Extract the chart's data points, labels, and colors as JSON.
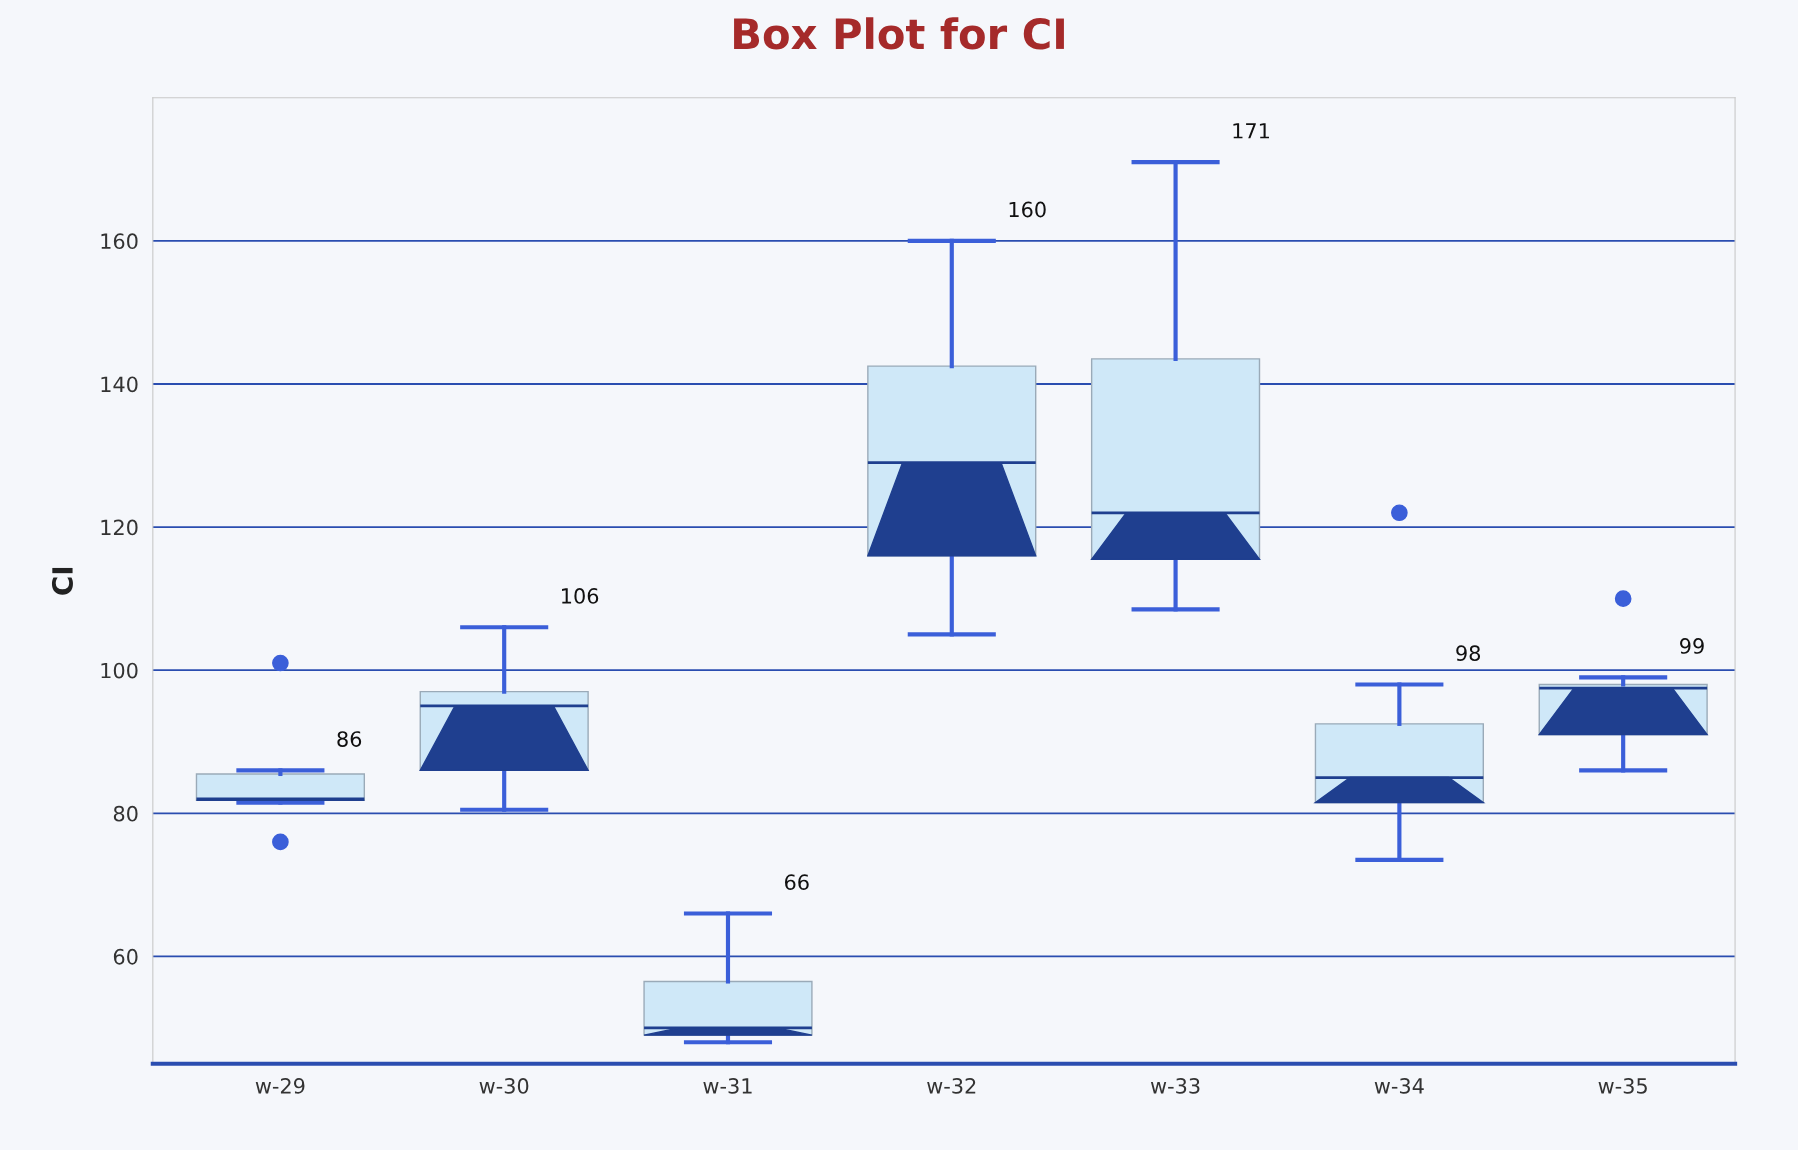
{
  "chart_data": {
    "type": "box",
    "title": "Box Plot for CI",
    "ylabel": "CI",
    "categories": [
      "w-29",
      "w-30",
      "w-31",
      "w-32",
      "w-33",
      "w-34",
      "w-35"
    ],
    "boxes": [
      {
        "low": 81.5,
        "q1": 81.8,
        "median": 82,
        "q3": 85.5,
        "high": 86,
        "outliers": [
          101,
          76
        ]
      },
      {
        "low": 80.5,
        "q1": 86,
        "median": 95,
        "q3": 97,
        "high": 106
      },
      {
        "low": 48,
        "q1": 49,
        "median": 50,
        "q3": 56.5,
        "high": 66
      },
      {
        "low": 105,
        "q1": 116,
        "median": 129,
        "q3": 142.5,
        "high": 160
      },
      {
        "low": 108.5,
        "q1": 115.5,
        "median": 122,
        "q3": 143.5,
        "high": 171
      },
      {
        "low": 73.5,
        "q1": 81.5,
        "median": 85,
        "q3": 92.5,
        "high": 98,
        "outliers": [
          122
        ]
      },
      {
        "low": 86,
        "q1": 91,
        "median": 97.5,
        "q3": 98,
        "high": 99,
        "outliers": [
          110
        ]
      }
    ],
    "value_labels": [
      "86",
      "106",
      "66",
      "160",
      "171",
      "98",
      "99"
    ],
    "colors": [
      "#cfe8f8",
      "#cfe8f8",
      "#cfe8f8",
      "#cfe8f8",
      "#cfe8f8",
      "#cfe8f8",
      "#cfe8f8"
    ],
    "color": "#3b5fd9",
    "ylim": [
      45,
      180
    ],
    "yticks": [
      60,
      80,
      100,
      120,
      140,
      160
    ],
    "grid": "y"
  }
}
